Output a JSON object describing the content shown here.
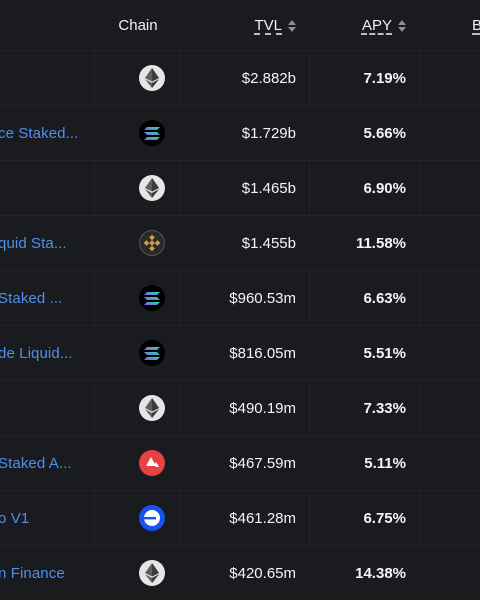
{
  "header": {
    "chain": "Chain",
    "tvl": "TVL",
    "apy": "APY",
    "next": "B"
  },
  "rows": [
    {
      "name": "",
      "chain": "ethereum",
      "tvl": "$2.882b",
      "apy": "7.19%"
    },
    {
      "name": "ce Staked...",
      "chain": "solana",
      "tvl": "$1.729b",
      "apy": "5.66%"
    },
    {
      "name": "",
      "chain": "ethereum",
      "tvl": "$1.465b",
      "apy": "6.90%"
    },
    {
      "name": "quid Sta...",
      "chain": "bsc",
      "tvl": "$1.455b",
      "apy": "11.58%"
    },
    {
      "name": "Staked ...",
      "chain": "solana",
      "tvl": "$960.53m",
      "apy": "6.63%"
    },
    {
      "name": "de Liquid...",
      "chain": "solana",
      "tvl": "$816.05m",
      "apy": "5.51%"
    },
    {
      "name": "",
      "chain": "ethereum",
      "tvl": "$490.19m",
      "apy": "7.33%"
    },
    {
      "name": "Staked A...",
      "chain": "avalanche",
      "tvl": "$467.59m",
      "apy": "5.11%"
    },
    {
      "name": "o V1",
      "chain": "base",
      "tvl": "$461.28m",
      "apy": "6.75%"
    },
    {
      "name": "n Finance",
      "chain": "ethereum",
      "tvl": "$420.65m",
      "apy": "14.38%"
    }
  ],
  "colors": {
    "background": "#1a1b1f",
    "link": "#4f8fea",
    "avalanche": "#e84142",
    "base": "#1652f0"
  }
}
